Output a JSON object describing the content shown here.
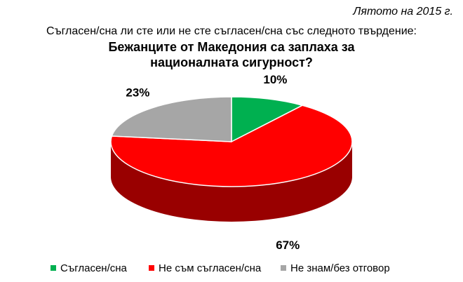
{
  "chart_data": {
    "type": "pie",
    "annotation": "Лятото на 2015 г.",
    "subtitle": "Съгласен/сна ли сте или не сте съгласен/сна със следното твърдение:",
    "title": "Бежанците от Македония са заплаха за националната сигурност?",
    "categories": [
      "Съгласен/сна",
      "Не съм съгласен/сна",
      "Не знам/без отговор"
    ],
    "values": [
      10,
      67,
      23
    ],
    "value_labels": [
      "10%",
      "67%",
      "23%"
    ],
    "colors": [
      "#00b050",
      "#ff0000",
      "#a6a6a6"
    ]
  }
}
